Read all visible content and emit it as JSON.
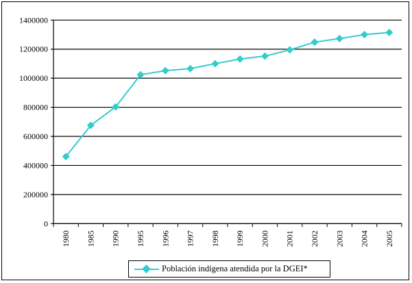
{
  "chart_data": {
    "type": "line",
    "title": "",
    "xlabel": "",
    "ylabel": "",
    "categories": [
      "1980",
      "1985",
      "1990",
      "1995",
      "1996",
      "1997",
      "1998",
      "1999",
      "2000",
      "2001",
      "2002",
      "2003",
      "2004",
      "2005"
    ],
    "series": [
      {
        "name": "Población indígena atendida por la DGEI*",
        "color": "#33cccc",
        "values": [
          461000,
          676000,
          803000,
          1024000,
          1052000,
          1066000,
          1100000,
          1132000,
          1152000,
          1195000,
          1248000,
          1273000,
          1300000,
          1315000
        ]
      }
    ],
    "ylim": [
      0,
      1400000
    ],
    "yticks": [
      "0",
      "200000",
      "400000",
      "600000",
      "800000",
      "1000000",
      "1200000",
      "1400000"
    ],
    "grid": true,
    "legend_position": "bottom"
  }
}
